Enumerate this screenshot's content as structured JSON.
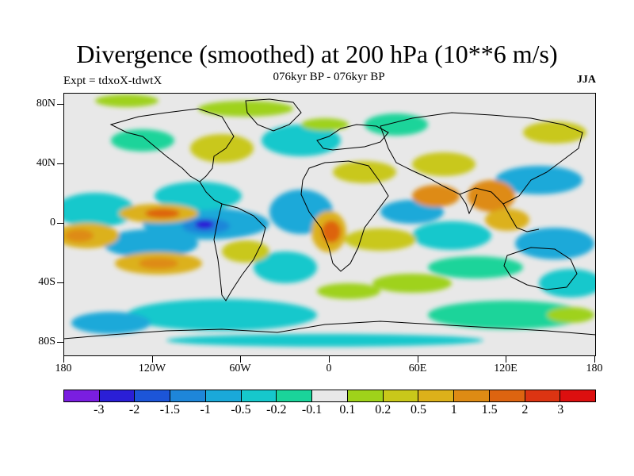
{
  "header": {
    "title": "Divergence (smoothed) at 200 hPa (10**6 m/s)",
    "experiment": "Expt = tdxoX-tdwtX",
    "period": "076kyr BP - 076kyr BP",
    "season": "JJA"
  },
  "map": {
    "lat_labels": [
      "80N",
      "40N",
      "0",
      "40S",
      "80S"
    ],
    "lon_labels": [
      "180",
      "120W",
      "60W",
      "0",
      "60E",
      "120E",
      "180"
    ],
    "background_color": "#e8e8e8"
  },
  "colorbar": {
    "colors": [
      "#7a1ee0",
      "#2a1fd6",
      "#1c55d8",
      "#1e86d9",
      "#1aa9d9",
      "#16c8cc",
      "#1ad49a",
      "#e8e8e8",
      "#9fd21a",
      "#c9c81a",
      "#dcb11a",
      "#de8b14",
      "#dd6410",
      "#dc3412",
      "#dc0f0f"
    ],
    "labels": [
      "-3",
      "-2",
      "-1.5",
      "-1",
      "-0.5",
      "-0.2",
      "-0.1",
      "0.1",
      "0.2",
      "0.5",
      "1",
      "1.5",
      "2",
      "3"
    ]
  }
}
